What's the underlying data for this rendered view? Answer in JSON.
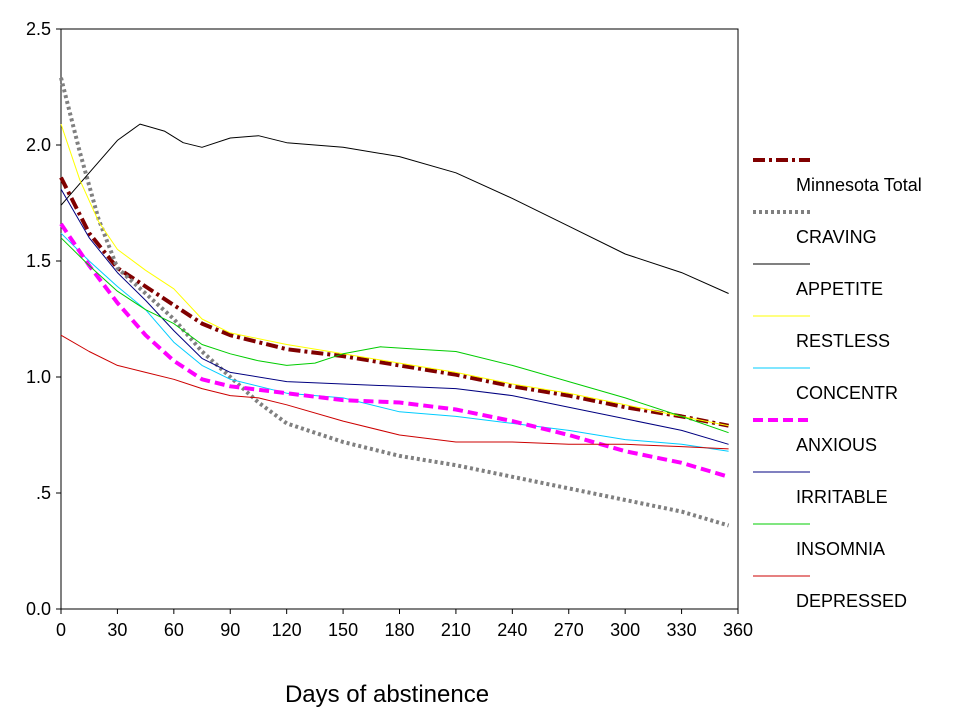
{
  "chart_data": {
    "type": "line",
    "title": "",
    "xlabel": "Days of abstinence",
    "ylabel": "",
    "xlim": [
      0,
      360
    ],
    "ylim": [
      0,
      2.5
    ],
    "x_ticks": [
      0,
      30,
      60,
      90,
      120,
      150,
      180,
      210,
      240,
      270,
      300,
      330,
      360
    ],
    "x_tick_labels": [
      "0",
      "30",
      "60",
      "90",
      "120",
      "150",
      "180",
      "210",
      "240",
      "270",
      "300",
      "330",
      "360"
    ],
    "y_ticks": [
      0,
      0.5,
      1.0,
      1.5,
      2.0,
      2.5
    ],
    "y_tick_labels": [
      "0.0",
      ".5",
      "1.0",
      "1.5",
      "2.0",
      "2.5"
    ],
    "grid": false,
    "legend_position": "right",
    "series": [
      {
        "name": "Minnesota Total",
        "color": "#800000",
        "style": "dashdot-thick",
        "x": [
          0,
          15,
          30,
          45,
          60,
          75,
          90,
          120,
          150,
          180,
          210,
          240,
          270,
          300,
          330,
          355
        ],
        "y": [
          1.86,
          1.62,
          1.47,
          1.39,
          1.31,
          1.23,
          1.18,
          1.12,
          1.09,
          1.05,
          1.01,
          0.96,
          0.92,
          0.87,
          0.83,
          0.79
        ]
      },
      {
        "name": "CRAVING",
        "color": "#808080",
        "style": "dotted-thick",
        "x": [
          0,
          10,
          20,
          30,
          45,
          60,
          75,
          90,
          105,
          120,
          150,
          180,
          210,
          240,
          270,
          300,
          330,
          355
        ],
        "y": [
          2.29,
          1.97,
          1.68,
          1.47,
          1.36,
          1.25,
          1.11,
          1.0,
          0.89,
          0.8,
          0.72,
          0.66,
          0.62,
          0.57,
          0.52,
          0.47,
          0.42,
          0.36
        ]
      },
      {
        "name": "APPETITE",
        "color": "#000000",
        "style": "solid",
        "x": [
          0,
          15,
          30,
          42,
          55,
          65,
          75,
          90,
          105,
          120,
          150,
          180,
          210,
          240,
          270,
          300,
          330,
          355
        ],
        "y": [
          1.74,
          1.88,
          2.02,
          2.09,
          2.06,
          2.01,
          1.99,
          2.03,
          2.04,
          2.01,
          1.99,
          1.95,
          1.88,
          1.77,
          1.65,
          1.53,
          1.45,
          1.36
        ]
      },
      {
        "name": "RESTLESS",
        "color": "#ffff00",
        "style": "solid",
        "x": [
          0,
          10,
          20,
          30,
          45,
          60,
          75,
          90,
          120,
          150,
          180,
          210,
          240,
          270,
          300,
          330,
          355
        ],
        "y": [
          2.09,
          1.85,
          1.67,
          1.55,
          1.46,
          1.38,
          1.25,
          1.19,
          1.14,
          1.1,
          1.06,
          1.02,
          0.97,
          0.93,
          0.88,
          0.83,
          0.79
        ]
      },
      {
        "name": "CONCENTR",
        "color": "#00ccff",
        "style": "solid",
        "x": [
          0,
          15,
          30,
          45,
          60,
          75,
          90,
          120,
          150,
          180,
          210,
          240,
          270,
          300,
          330,
          355
        ],
        "y": [
          1.62,
          1.5,
          1.39,
          1.29,
          1.15,
          1.05,
          0.99,
          0.93,
          0.91,
          0.85,
          0.83,
          0.8,
          0.77,
          0.73,
          0.71,
          0.68
        ]
      },
      {
        "name": "ANXIOUS",
        "color": "#ff00ff",
        "style": "dashed-thick",
        "x": [
          0,
          15,
          30,
          45,
          60,
          75,
          90,
          120,
          150,
          180,
          210,
          240,
          270,
          300,
          330,
          355
        ],
        "y": [
          1.66,
          1.48,
          1.32,
          1.18,
          1.07,
          0.99,
          0.96,
          0.93,
          0.9,
          0.89,
          0.86,
          0.81,
          0.75,
          0.68,
          0.63,
          0.57
        ]
      },
      {
        "name": "IRRITABLE",
        "color": "#000080",
        "style": "solid",
        "x": [
          0,
          15,
          30,
          45,
          60,
          75,
          90,
          120,
          150,
          180,
          210,
          240,
          270,
          300,
          330,
          355
        ],
        "y": [
          1.81,
          1.6,
          1.45,
          1.33,
          1.2,
          1.08,
          1.02,
          0.98,
          0.97,
          0.96,
          0.95,
          0.92,
          0.87,
          0.82,
          0.77,
          0.71
        ]
      },
      {
        "name": "INSOMNIA",
        "color": "#00cc00",
        "style": "solid",
        "x": [
          0,
          15,
          30,
          45,
          60,
          75,
          90,
          105,
          120,
          135,
          150,
          170,
          190,
          210,
          240,
          270,
          300,
          330,
          355
        ],
        "y": [
          1.6,
          1.48,
          1.37,
          1.29,
          1.23,
          1.14,
          1.1,
          1.07,
          1.05,
          1.06,
          1.1,
          1.13,
          1.12,
          1.11,
          1.05,
          0.98,
          0.91,
          0.83,
          0.76
        ]
      },
      {
        "name": "DEPRESSED",
        "color": "#cc0000",
        "style": "solid",
        "x": [
          0,
          15,
          30,
          45,
          60,
          75,
          90,
          105,
          120,
          150,
          180,
          210,
          240,
          270,
          300,
          330,
          355
        ],
        "y": [
          1.18,
          1.11,
          1.05,
          1.02,
          0.99,
          0.95,
          0.92,
          0.91,
          0.88,
          0.81,
          0.75,
          0.72,
          0.72,
          0.71,
          0.71,
          0.7,
          0.69
        ]
      }
    ]
  }
}
